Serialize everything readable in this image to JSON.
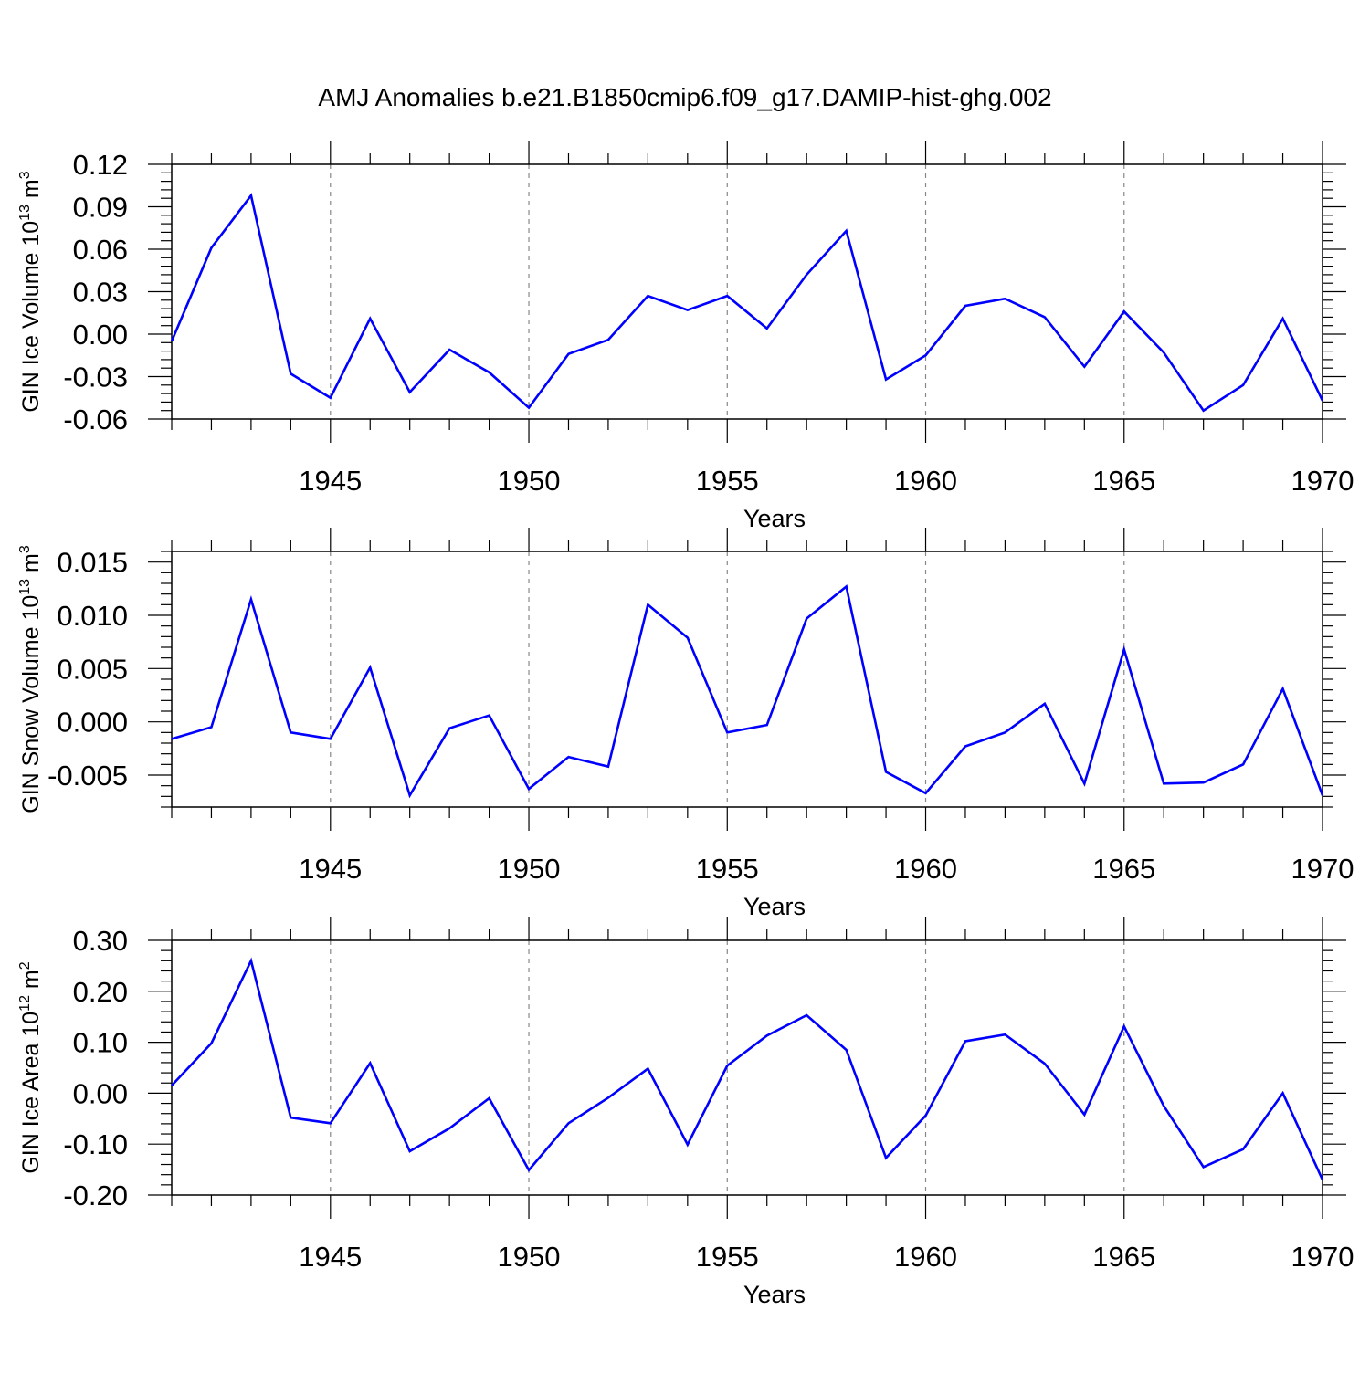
{
  "title": "AMJ Anomalies b.e21.B1850cmip6.f09_g17.DAMIP-hist-ghg.002",
  "chart_data": [
    {
      "type": "line",
      "xlabel": "Years",
      "ylabel": {
        "prefix": "GIN Ice Volume 10",
        "exponent": "13",
        "unit": " m",
        "unit_exponent": "3"
      },
      "xlim": [
        1941,
        1970
      ],
      "ylim": [
        -0.06,
        0.12
      ],
      "xticks": [
        1945,
        1950,
        1955,
        1960,
        1965,
        1970
      ],
      "yticks": [
        -0.06,
        -0.03,
        0.0,
        0.03,
        0.06,
        0.09,
        0.12
      ],
      "ytick_labels": [
        "-0.06",
        "-0.03",
        "0.00",
        "0.03",
        "0.06",
        "0.09",
        "0.12"
      ],
      "grid": "dashed vertical at major x ticks",
      "line_color": "#0000ff",
      "x": [
        1941,
        1942,
        1943,
        1944,
        1945,
        1946,
        1947,
        1948,
        1949,
        1950,
        1951,
        1952,
        1953,
        1954,
        1955,
        1956,
        1957,
        1958,
        1959,
        1960,
        1961,
        1962,
        1963,
        1964,
        1965,
        1966,
        1967,
        1968,
        1969,
        1970
      ],
      "values": [
        -0.005,
        0.061,
        0.098,
        -0.028,
        -0.045,
        0.011,
        -0.041,
        -0.011,
        -0.027,
        -0.052,
        -0.014,
        -0.004,
        0.027,
        0.017,
        0.027,
        0.004,
        0.042,
        0.073,
        -0.032,
        -0.015,
        0.02,
        0.025,
        0.012,
        -0.023,
        0.016,
        -0.013,
        -0.054,
        -0.036,
        0.011,
        -0.047
      ]
    },
    {
      "type": "line",
      "xlabel": "Years",
      "ylabel": {
        "prefix": "GIN Snow Volume 10",
        "exponent": "13",
        "unit": " m",
        "unit_exponent": "3"
      },
      "xlim": [
        1941,
        1970
      ],
      "ylim": [
        -0.008,
        0.016
      ],
      "xticks": [
        1945,
        1950,
        1955,
        1960,
        1965,
        1970
      ],
      "yticks": [
        -0.005,
        0.0,
        0.005,
        0.01,
        0.015
      ],
      "ytick_labels": [
        "-0.005",
        "0.000",
        "0.005",
        "0.010",
        "0.015"
      ],
      "grid": "dashed vertical at major x ticks",
      "line_color": "#0000ff",
      "x": [
        1941,
        1942,
        1943,
        1944,
        1945,
        1946,
        1947,
        1948,
        1949,
        1950,
        1951,
        1952,
        1953,
        1954,
        1955,
        1956,
        1957,
        1958,
        1959,
        1960,
        1961,
        1962,
        1963,
        1964,
        1965,
        1966,
        1967,
        1968,
        1969,
        1970
      ],
      "values": [
        -0.0016,
        -0.0005,
        0.0115,
        -0.001,
        -0.0016,
        0.0051,
        -0.0069,
        -0.0006,
        0.0006,
        -0.0063,
        -0.0033,
        -0.0042,
        0.011,
        0.0079,
        -0.001,
        -0.0003,
        0.0097,
        0.0127,
        -0.0047,
        -0.0067,
        -0.0023,
        -0.001,
        0.0017,
        -0.0058,
        0.0068,
        -0.0058,
        -0.0057,
        -0.004,
        0.0031,
        -0.0069
      ]
    },
    {
      "type": "line",
      "xlabel": "Years",
      "ylabel": {
        "prefix": "GIN Ice Area 10",
        "exponent": "12",
        "unit": " m",
        "unit_exponent": "2"
      },
      "xlim": [
        1941,
        1970
      ],
      "ylim": [
        -0.2,
        0.3
      ],
      "xticks": [
        1945,
        1950,
        1955,
        1960,
        1965,
        1970
      ],
      "yticks": [
        -0.2,
        -0.1,
        0.0,
        0.1,
        0.2,
        0.3
      ],
      "ytick_labels": [
        "-0.20",
        "-0.10",
        "0.00",
        "0.10",
        "0.20",
        "0.30"
      ],
      "grid": "dashed vertical at major x ticks",
      "line_color": "#0000ff",
      "x": [
        1941,
        1942,
        1943,
        1944,
        1945,
        1946,
        1947,
        1948,
        1949,
        1950,
        1951,
        1952,
        1953,
        1954,
        1955,
        1956,
        1957,
        1958,
        1959,
        1960,
        1961,
        1962,
        1963,
        1964,
        1965,
        1966,
        1967,
        1968,
        1969,
        1970
      ],
      "values": [
        0.015,
        0.098,
        0.26,
        -0.048,
        -0.059,
        0.059,
        -0.114,
        -0.069,
        -0.01,
        -0.151,
        -0.059,
        -0.009,
        0.048,
        -0.101,
        0.054,
        0.113,
        0.153,
        0.085,
        -0.127,
        -0.044,
        0.102,
        0.115,
        0.058,
        -0.042,
        0.131,
        -0.025,
        -0.145,
        -0.11,
        0.0,
        -0.17
      ]
    }
  ]
}
